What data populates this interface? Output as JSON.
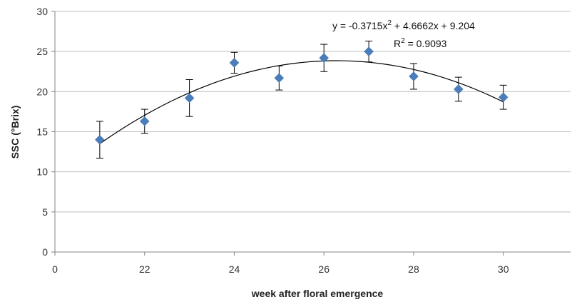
{
  "chart_data": {
    "type": "scatter",
    "title": "",
    "xlabel": "week after floral emergence",
    "ylabel": "SSC (°Brix)",
    "xlim": [
      0,
      11.5
    ],
    "ylim": [
      0,
      30
    ],
    "y_ticks": [
      0,
      5,
      10,
      15,
      20,
      25,
      30
    ],
    "x_ticks": [
      {
        "pos": 0,
        "label": "0"
      },
      {
        "pos": 2,
        "label": "22"
      },
      {
        "pos": 4,
        "label": "24"
      },
      {
        "pos": 6,
        "label": "26"
      },
      {
        "pos": 8,
        "label": "28"
      },
      {
        "pos": 10,
        "label": "30"
      }
    ],
    "grid": {
      "horizontal": true,
      "vertical": false
    },
    "legend": "none",
    "points": [
      {
        "x": 1,
        "y": 14.0,
        "err": 2.3
      },
      {
        "x": 2,
        "y": 16.3,
        "err": 1.5
      },
      {
        "x": 3,
        "y": 19.2,
        "err": 2.3
      },
      {
        "x": 4,
        "y": 23.6,
        "err": 1.3
      },
      {
        "x": 5,
        "y": 21.7,
        "err": 1.5
      },
      {
        "x": 6,
        "y": 24.2,
        "err": 1.7
      },
      {
        "x": 7,
        "y": 25.0,
        "err": 1.3
      },
      {
        "x": 8,
        "y": 21.9,
        "err": 1.6
      },
      {
        "x": 9,
        "y": 20.3,
        "err": 1.5
      },
      {
        "x": 10,
        "y": 19.3,
        "err": 1.5
      }
    ],
    "trendline": {
      "type": "polynomial",
      "coefficients": [
        -0.3715,
        4.6662,
        9.204
      ],
      "x_range": [
        1,
        10
      ]
    },
    "annotations": {
      "equation_prefix": "y = -0.3715x",
      "equation_exp": "2",
      "equation_suffix": " + 4.6662x + 9.204",
      "r2_prefix": "R",
      "r2_exp": "2",
      "r2_suffix": " = 0.9093"
    },
    "colors": {
      "marker": "#4a7ebb",
      "error_bar": "#000000",
      "trendline": "#000000",
      "grid": "#bfbfbf",
      "axis": "#868686"
    }
  }
}
